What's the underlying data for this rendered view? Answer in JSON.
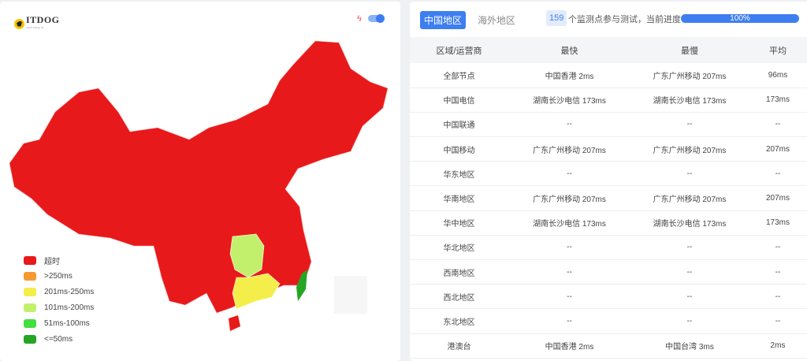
{
  "logo": {
    "text": "ITDOG",
    "sub": "www.itdog.cn"
  },
  "map": {
    "toggle_on": true,
    "region_colors": {
      "default": "#e8191a",
      "guangxi_guangdong": "#f4ee4a",
      "hunan": "#c3f06c",
      "taiwan": "#25a524"
    }
  },
  "legend": [
    {
      "label": "超时",
      "color": "#e8191a"
    },
    {
      "label": ">250ms",
      "color": "#f59a32"
    },
    {
      "label": "201ms-250ms",
      "color": "#f4ee4a"
    },
    {
      "label": "101ms-200ms",
      "color": "#c3f06c"
    },
    {
      "label": "51ms-100ms",
      "color": "#43de3f"
    },
    {
      "label": "<=50ms",
      "color": "#25a524"
    }
  ],
  "tabs": [
    {
      "label": "中国地区",
      "active": true
    },
    {
      "label": "海外地区",
      "active": false
    }
  ],
  "progress": {
    "count": "159",
    "text": "个监测点参与测试，当前进度：",
    "percent": 100,
    "label": "100%"
  },
  "table": {
    "headers": [
      "区域/运营商",
      "最快",
      "最慢",
      "平均"
    ],
    "rows": [
      [
        "全部节点",
        "中国香港 2ms",
        "广东广州移动 207ms",
        "96ms"
      ],
      [
        "中国电信",
        "湖南长沙电信 173ms",
        "湖南长沙电信 173ms",
        "173ms"
      ],
      [
        "中国联通",
        "--",
        "--",
        "--"
      ],
      [
        "中国移动",
        "广东广州移动 207ms",
        "广东广州移动 207ms",
        "207ms"
      ],
      [
        "华东地区",
        "--",
        "--",
        "--"
      ],
      [
        "华南地区",
        "广东广州移动 207ms",
        "广东广州移动 207ms",
        "207ms"
      ],
      [
        "华中地区",
        "湖南长沙电信 173ms",
        "湖南长沙电信 173ms",
        "173ms"
      ],
      [
        "华北地区",
        "--",
        "--",
        "--"
      ],
      [
        "西南地区",
        "--",
        "--",
        "--"
      ],
      [
        "西北地区",
        "--",
        "--",
        "--"
      ],
      [
        "东北地区",
        "--",
        "--",
        "--"
      ],
      [
        "港澳台",
        "中国香港 2ms",
        "中国台湾 3ms",
        "2ms"
      ]
    ]
  }
}
